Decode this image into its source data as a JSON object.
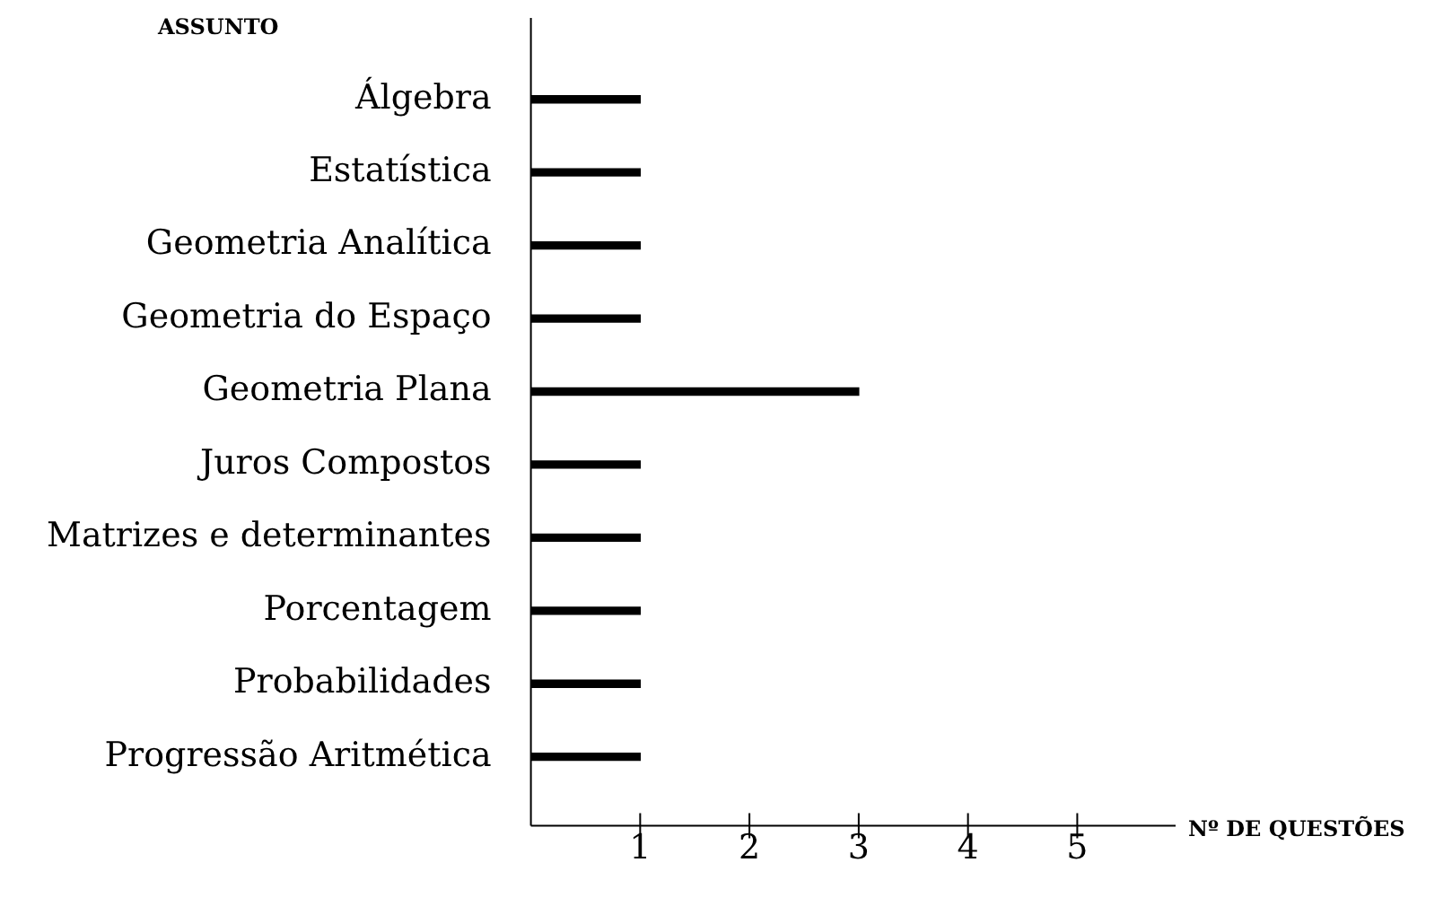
{
  "chart_data": {
    "type": "bar",
    "orientation": "horizontal",
    "ylabel": "ASSUNTO",
    "xlabel": "Nº DE QUESTÕES",
    "categories": [
      "Álgebra",
      "Estatística",
      "Geometria Analítica",
      "Geometria do Espaço",
      "Geometria Plana",
      "Juros Compostos",
      "Matrizes e determinantes",
      "Porcentagem",
      "Probabilidades",
      "Progressão Aritmética"
    ],
    "values": [
      1,
      1,
      1,
      1,
      3,
      1,
      1,
      1,
      1,
      1
    ],
    "color": "#000000",
    "xlim": [
      0,
      5.9
    ],
    "xticks": [
      1,
      2,
      3,
      4,
      5
    ],
    "grid": false,
    "legend": false
  }
}
